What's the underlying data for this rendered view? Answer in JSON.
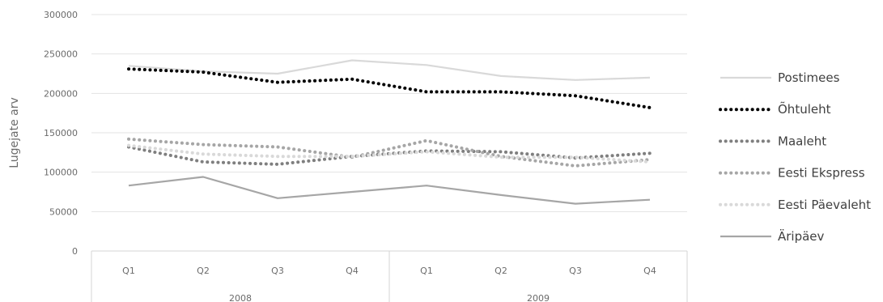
{
  "chart_data": {
    "type": "line",
    "ylabel": "Lugejate arv",
    "ylim": [
      0,
      300000
    ],
    "yticks": [
      0,
      50000,
      100000,
      150000,
      200000,
      250000,
      300000
    ],
    "grid": true,
    "legend_position": "right",
    "categories": [
      "Q1",
      "Q2",
      "Q3",
      "Q4",
      "Q1",
      "Q2",
      "Q3",
      "Q4"
    ],
    "groups": [
      {
        "label": "2008",
        "count": 4
      },
      {
        "label": "2009",
        "count": 4
      }
    ],
    "series": [
      {
        "name": "Postimees",
        "color": "#d9d9d9",
        "style": "solid",
        "values": [
          235000,
          228000,
          225000,
          242000,
          236000,
          222000,
          217000,
          220000
        ]
      },
      {
        "name": "Õhtuleht",
        "color": "#000000",
        "style": "dotted",
        "values": [
          231000,
          227000,
          214000,
          218000,
          202000,
          202000,
          197000,
          182000
        ]
      },
      {
        "name": "Maaleht",
        "color": "#7f7f7f",
        "style": "dotted",
        "values": [
          132000,
          113000,
          110000,
          120000,
          127000,
          126000,
          118000,
          124000
        ]
      },
      {
        "name": "Eesti Ekspress",
        "color": "#a6a6a6",
        "style": "dotted",
        "values": [
          142000,
          135000,
          132000,
          119000,
          140000,
          120000,
          108000,
          116000
        ]
      },
      {
        "name": "Eesti Päevaleht",
        "color": "#d9d9d9",
        "style": "dotted",
        "values": [
          134000,
          123000,
          120000,
          120000,
          126000,
          119000,
          119000,
          113000
        ]
      },
      {
        "name": "Äripäev",
        "color": "#a6a6a6",
        "style": "solid",
        "values": [
          83000,
          94000,
          67000,
          75000,
          83000,
          71000,
          60000,
          65000
        ]
      }
    ]
  }
}
